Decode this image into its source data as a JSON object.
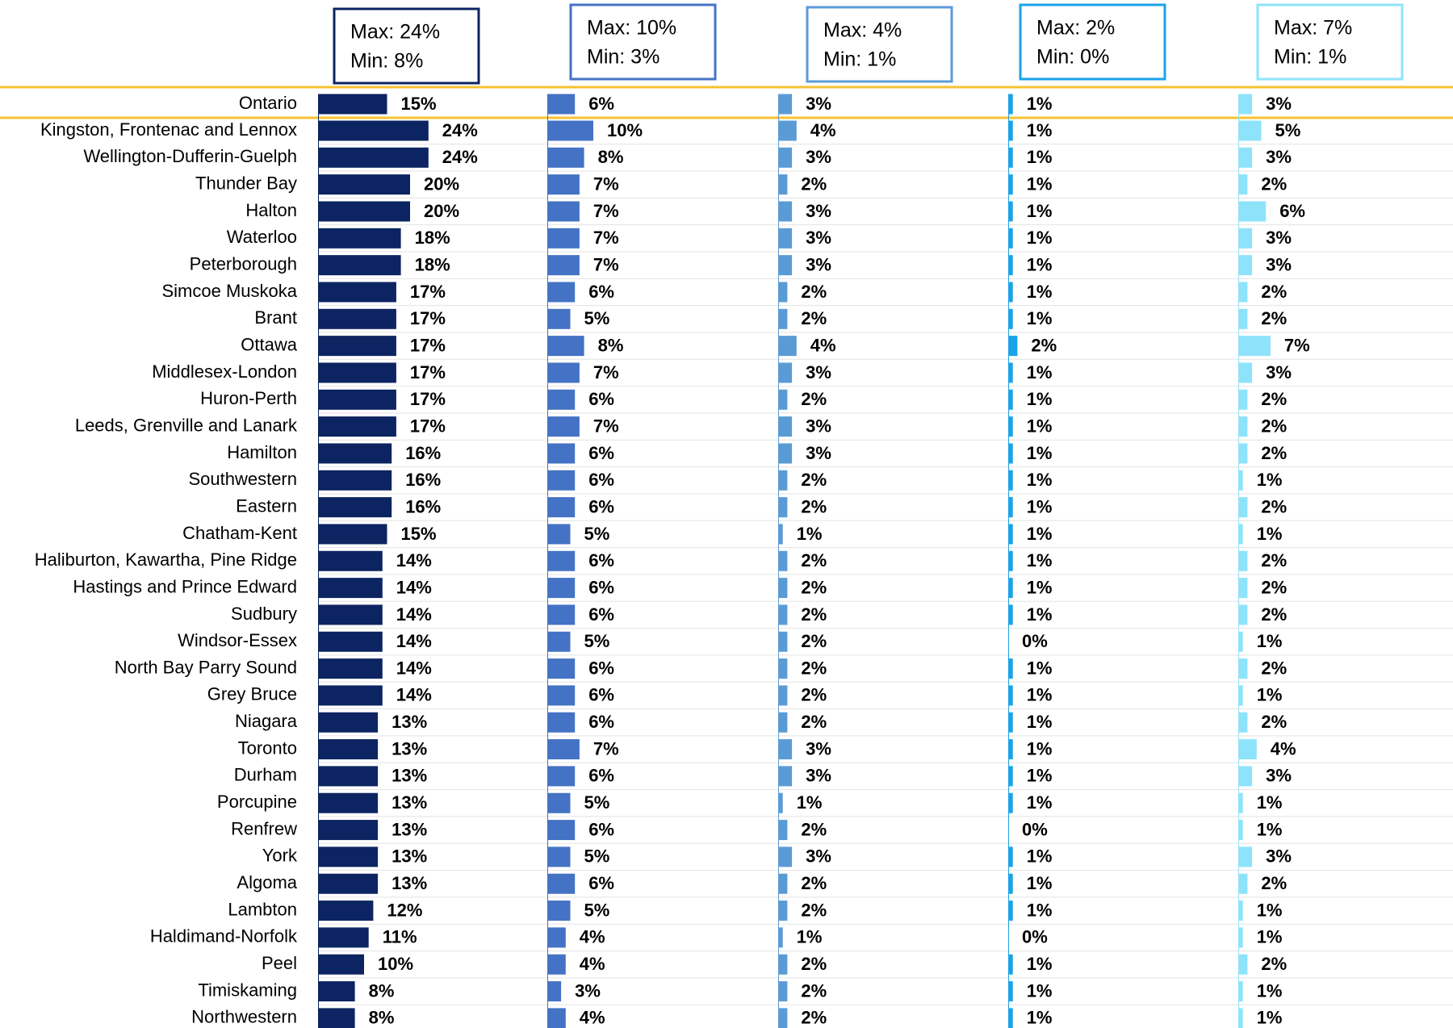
{
  "chart_data": {
    "type": "bar",
    "categories": [
      "Ontario",
      "Kingston, Frontenac and Lennox",
      "Wellington-Dufferin-Guelph",
      "Thunder Bay",
      "Halton",
      "Waterloo",
      "Peterborough",
      "Simcoe Muskoka",
      "Brant",
      "Ottawa",
      "Middlesex-London",
      "Huron-Perth",
      "Leeds, Grenville and Lanark",
      "Hamilton",
      "Southwestern",
      "Eastern",
      "Chatham-Kent",
      "Haliburton, Kawartha, Pine Ridge",
      "Hastings and Prince Edward",
      "Sudbury",
      "Windsor-Essex",
      "North Bay Parry Sound",
      "Grey Bruce",
      "Niagara",
      "Toronto",
      "Durham",
      "Porcupine",
      "Renfrew",
      "York",
      "Algoma",
      "Lambton",
      "Haldimand-Norfolk",
      "Peel",
      "Timiskaming",
      "Northwestern"
    ],
    "series": [
      {
        "color": "#0c2461",
        "max_label": "Max:  24%",
        "min_label": "Min:  8%",
        "values": [
          15,
          24,
          24,
          20,
          20,
          18,
          18,
          17,
          17,
          17,
          17,
          17,
          17,
          16,
          16,
          16,
          15,
          14,
          14,
          14,
          14,
          14,
          14,
          13,
          13,
          13,
          13,
          13,
          13,
          13,
          12,
          11,
          10,
          8,
          8
        ],
        "value_labels": [
          "15%",
          "24%",
          "24%",
          "20%",
          "20%",
          "18%",
          "18%",
          "17%",
          "17%",
          "17%",
          "17%",
          "17%",
          "17%",
          "16%",
          "16%",
          "16%",
          "15%",
          "14%",
          "14%",
          "14%",
          "14%",
          "14%",
          "14%",
          "13%",
          "13%",
          "13%",
          "13%",
          "13%",
          "13%",
          "13%",
          "12%",
          "11%",
          "10%",
          "8%",
          "8%"
        ]
      },
      {
        "color": "#4472c4",
        "max_label": "Max: 10%",
        "min_label": "Min:  3%",
        "values": [
          6,
          10,
          8,
          7,
          7,
          7,
          7,
          6,
          5,
          8,
          7,
          6,
          7,
          6,
          6,
          6,
          5,
          6,
          6,
          6,
          5,
          6,
          6,
          6,
          7,
          6,
          5,
          6,
          5,
          6,
          5,
          4,
          4,
          3,
          4
        ],
        "value_labels": [
          "6%",
          "10%",
          "8%",
          "7%",
          "7%",
          "7%",
          "7%",
          "6%",
          "5%",
          "8%",
          "7%",
          "6%",
          "7%",
          "6%",
          "6%",
          "6%",
          "5%",
          "6%",
          "6%",
          "6%",
          "5%",
          "6%",
          "6%",
          "6%",
          "7%",
          "6%",
          "5%",
          "6%",
          "5%",
          "6%",
          "5%",
          "4%",
          "4%",
          "3%",
          "4%"
        ]
      },
      {
        "color": "#5b9bd5",
        "max_label": "Max: 4%",
        "min_label": "Min:  1%",
        "values": [
          3,
          4,
          3,
          2,
          3,
          3,
          3,
          2,
          2,
          4,
          3,
          2,
          3,
          3,
          2,
          2,
          1,
          2,
          2,
          2,
          2,
          2,
          2,
          2,
          3,
          3,
          1,
          2,
          3,
          2,
          2,
          1,
          2,
          2,
          2
        ],
        "value_labels": [
          "3%",
          "4%",
          "3%",
          "2%",
          "3%",
          "3%",
          "3%",
          "2%",
          "2%",
          "4%",
          "3%",
          "2%",
          "3%",
          "3%",
          "2%",
          "2%",
          "1%",
          "2%",
          "2%",
          "2%",
          "2%",
          "2%",
          "2%",
          "2%",
          "3%",
          "3%",
          "1%",
          "2%",
          "3%",
          "2%",
          "2%",
          "1%",
          "2%",
          "2%",
          "2%"
        ]
      },
      {
        "color": "#1aa3e8",
        "max_label": "Max: 2%",
        "min_label": "Min:  0%",
        "values": [
          1,
          1,
          1,
          1,
          1,
          1,
          1,
          1,
          1,
          2,
          1,
          1,
          1,
          1,
          1,
          1,
          1,
          1,
          1,
          1,
          0,
          1,
          1,
          1,
          1,
          1,
          1,
          0,
          1,
          1,
          1,
          0,
          1,
          1,
          1
        ],
        "value_labels": [
          "1%",
          "1%",
          "1%",
          "1%",
          "1%",
          "1%",
          "1%",
          "1%",
          "1%",
          "2%",
          "1%",
          "1%",
          "1%",
          "1%",
          "1%",
          "1%",
          "1%",
          "1%",
          "1%",
          "1%",
          "0%",
          "1%",
          "1%",
          "1%",
          "1%",
          "1%",
          "1%",
          "0%",
          "1%",
          "1%",
          "1%",
          "0%",
          "1%",
          "1%",
          "1%"
        ]
      },
      {
        "color": "#8ee3fb",
        "max_label": "Max: 7%",
        "min_label": "Min:  1%",
        "values": [
          3,
          5,
          3,
          2,
          6,
          3,
          3,
          2,
          2,
          7,
          3,
          2,
          2,
          2,
          1,
          2,
          1,
          2,
          2,
          2,
          1,
          2,
          1,
          2,
          4,
          3,
          1,
          1,
          3,
          2,
          1,
          1,
          2,
          1,
          1
        ],
        "value_labels": [
          "3%",
          "5%",
          "3%",
          "2%",
          "6%",
          "3%",
          "3%",
          "2%",
          "2%",
          "7%",
          "3%",
          "2%",
          "2%",
          "2%",
          "1%",
          "2%",
          "1%",
          "2%",
          "2%",
          "2%",
          "1%",
          "2%",
          "1%",
          "2%",
          "4%",
          "3%",
          "1%",
          "1%",
          "3%",
          "2%",
          "1%",
          "1%",
          "2%",
          "1%",
          "1%"
        ]
      }
    ]
  }
}
